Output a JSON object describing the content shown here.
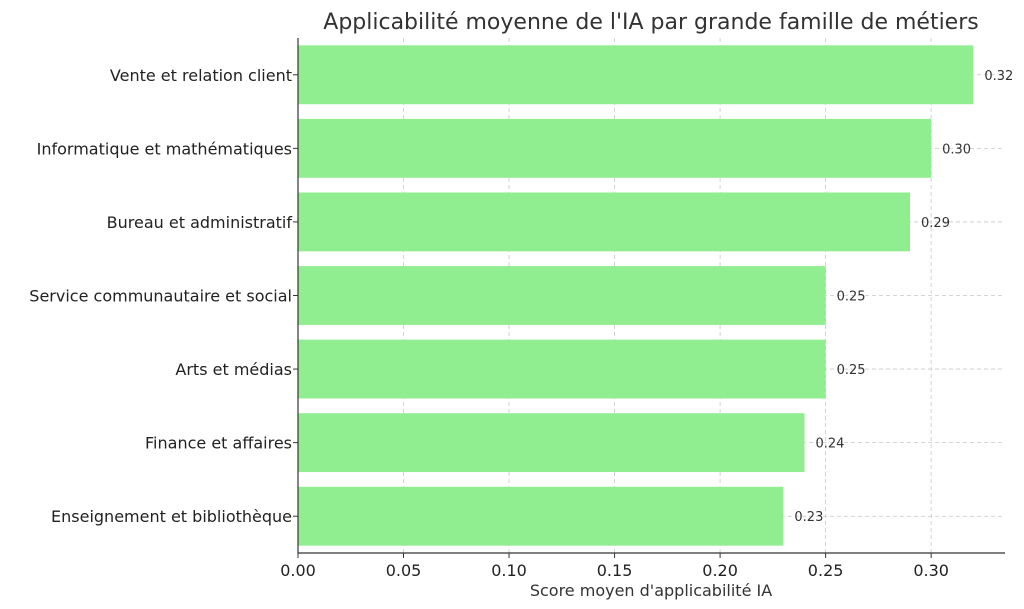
{
  "chart_data": {
    "type": "bar",
    "orientation": "horizontal",
    "title": "Applicabilité moyenne de l'IA par grande famille de métiers",
    "xlabel": "Score moyen d'applicabilité IA",
    "ylabel": "",
    "xlim": [
      0,
      0.335
    ],
    "x_ticks": [
      "0.00",
      "0.05",
      "0.10",
      "0.15",
      "0.20",
      "0.25",
      "0.30"
    ],
    "grid": true,
    "bar_color": "#90EE90",
    "categories": [
      "Vente et relation client",
      "Informatique et mathématiques",
      "Bureau et administratif",
      "Service communautaire et social",
      "Arts et médias",
      "Finance et affaires",
      "Enseignement et bibliothèque"
    ],
    "values": [
      0.32,
      0.3,
      0.29,
      0.25,
      0.25,
      0.24,
      0.23
    ],
    "value_labels": [
      "0.32",
      "0.30",
      "0.29",
      "0.25",
      "0.25",
      "0.24",
      "0.23"
    ]
  }
}
